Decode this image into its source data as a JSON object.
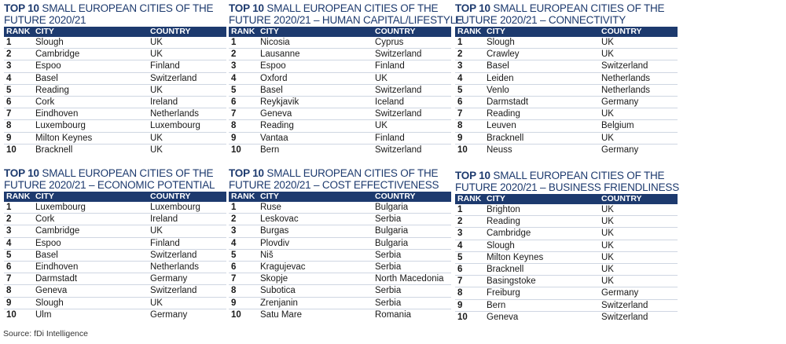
{
  "headers": {
    "rank": "RANK",
    "city": "CITY",
    "country": "COUNTRY"
  },
  "tables": [
    {
      "title_bold": "TOP 10",
      "title_line1": " SMALL EUROPEAN CITIES OF THE",
      "title_line2": "FUTURE 2020/21",
      "rows": [
        {
          "rank": "1",
          "city": "Slough",
          "country": "UK"
        },
        {
          "rank": "2",
          "city": "Cambridge",
          "country": "UK"
        },
        {
          "rank": "3",
          "city": "Espoo",
          "country": "Finland"
        },
        {
          "rank": "4",
          "city": "Basel",
          "country": "Switzerland"
        },
        {
          "rank": "5",
          "city": "Reading",
          "country": "UK"
        },
        {
          "rank": "6",
          "city": "Cork",
          "country": "Ireland"
        },
        {
          "rank": "7",
          "city": "Eindhoven",
          "country": "Netherlands"
        },
        {
          "rank": "8",
          "city": "Luxembourg",
          "country": "Luxembourg"
        },
        {
          "rank": "9",
          "city": "Milton Keynes",
          "country": "UK"
        },
        {
          "rank": "10",
          "city": "Bracknell",
          "country": "UK"
        }
      ]
    },
    {
      "title_bold": "TOP 10",
      "title_line1": " SMALL EUROPEAN CITIES OF THE",
      "title_line2": "FUTURE 2020/21 – HUMAN CAPITAL/LIFESTYLE",
      "rows": [
        {
          "rank": "1",
          "city": "Nicosia",
          "country": "Cyprus"
        },
        {
          "rank": "2",
          "city": "Lausanne",
          "country": "Switzerland"
        },
        {
          "rank": "3",
          "city": "Espoo",
          "country": "Finland"
        },
        {
          "rank": "4",
          "city": "Oxford",
          "country": "UK"
        },
        {
          "rank": "5",
          "city": "Basel",
          "country": "Switzerland"
        },
        {
          "rank": "6",
          "city": "Reykjavik",
          "country": "Iceland"
        },
        {
          "rank": "7",
          "city": "Geneva",
          "country": "Switzerland"
        },
        {
          "rank": "8",
          "city": "Reading",
          "country": "UK"
        },
        {
          "rank": "9",
          "city": "Vantaa",
          "country": "Finland"
        },
        {
          "rank": "10",
          "city": "Bern",
          "country": "Switzerland"
        }
      ]
    },
    {
      "title_bold": "TOP 10",
      "title_line1": " SMALL EUROPEAN CITIES OF THE",
      "title_line2": "FUTURE 2020/21 – CONNECTIVITY",
      "rows": [
        {
          "rank": "1",
          "city": "Slough",
          "country": "UK"
        },
        {
          "rank": "2",
          "city": "Crawley",
          "country": "UK"
        },
        {
          "rank": "3",
          "city": "Basel",
          "country": "Switzerland"
        },
        {
          "rank": "4",
          "city": "Leiden",
          "country": "Netherlands"
        },
        {
          "rank": "5",
          "city": "Venlo",
          "country": "Netherlands"
        },
        {
          "rank": "6",
          "city": "Darmstadt",
          "country": "Germany"
        },
        {
          "rank": "7",
          "city": "Reading",
          "country": "UK"
        },
        {
          "rank": "8",
          "city": "Leuven",
          "country": "Belgium"
        },
        {
          "rank": "9",
          "city": "Bracknell",
          "country": "UK"
        },
        {
          "rank": "10",
          "city": "Neuss",
          "country": "Germany"
        }
      ]
    },
    {
      "title_bold": "TOP 10",
      "title_line1": " SMALL EUROPEAN CITIES OF THE",
      "title_line2": "FUTURE 2020/21 – ECONOMIC POTENTIAL",
      "rows": [
        {
          "rank": "1",
          "city": "Luxembourg",
          "country": "Luxembourg"
        },
        {
          "rank": "2",
          "city": "Cork",
          "country": "Ireland"
        },
        {
          "rank": "3",
          "city": "Cambridge",
          "country": "UK"
        },
        {
          "rank": "4",
          "city": "Espoo",
          "country": "Finland"
        },
        {
          "rank": "5",
          "city": "Basel",
          "country": "Switzerland"
        },
        {
          "rank": "6",
          "city": "Eindhoven",
          "country": "Netherlands"
        },
        {
          "rank": "7",
          "city": "Darmstadt",
          "country": "Germany"
        },
        {
          "rank": "8",
          "city": "Geneva",
          "country": "Switzerland"
        },
        {
          "rank": "9",
          "city": "Slough",
          "country": "UK"
        },
        {
          "rank": "10",
          "city": "Ulm",
          "country": "Germany"
        }
      ]
    },
    {
      "title_bold": "TOP 10",
      "title_line1": " SMALL EUROPEAN CITIES OF THE",
      "title_line2": "FUTURE 2020/21 – COST EFFECTIVENESS",
      "rows": [
        {
          "rank": "1",
          "city": "Ruse",
          "country": "Bulgaria"
        },
        {
          "rank": "2",
          "city": "Leskovac",
          "country": "Serbia"
        },
        {
          "rank": "3",
          "city": "Burgas",
          "country": "Bulgaria"
        },
        {
          "rank": "4",
          "city": "Plovdiv",
          "country": "Bulgaria"
        },
        {
          "rank": "5",
          "city": "Niš",
          "country": "Serbia"
        },
        {
          "rank": "6",
          "city": "Kragujevac",
          "country": "Serbia"
        },
        {
          "rank": "7",
          "city": "Skopje",
          "country": "North Macedonia"
        },
        {
          "rank": "8",
          "city": "Subotica",
          "country": "Serbia"
        },
        {
          "rank": "9",
          "city": "Zrenjanin",
          "country": "Serbia"
        },
        {
          "rank": "10",
          "city": "Satu Mare",
          "country": "Romania"
        }
      ]
    },
    {
      "title_bold": "TOP 10",
      "title_line1": " SMALL EUROPEAN CITIES OF THE",
      "title_line2": "FUTURE 2020/21 – BUSINESS FRIENDLINESS",
      "rows": [
        {
          "rank": "1",
          "city": "Brighton",
          "country": "UK"
        },
        {
          "rank": "2",
          "city": "Reading",
          "country": "UK"
        },
        {
          "rank": "3",
          "city": "Cambridge",
          "country": "UK"
        },
        {
          "rank": "4",
          "city": "Slough",
          "country": "UK"
        },
        {
          "rank": "5",
          "city": "Milton Keynes",
          "country": "UK"
        },
        {
          "rank": "6",
          "city": "Bracknell",
          "country": "UK"
        },
        {
          "rank": "7",
          "city": "Basingstoke",
          "country": "UK"
        },
        {
          "rank": "8",
          "city": "Freiburg",
          "country": "Germany"
        },
        {
          "rank": "9",
          "city": "Bern",
          "country": "Switzerland"
        },
        {
          "rank": "10",
          "city": "Geneva",
          "country": "Switzerland"
        }
      ]
    }
  ],
  "source": "Source: fDi Intelligence"
}
